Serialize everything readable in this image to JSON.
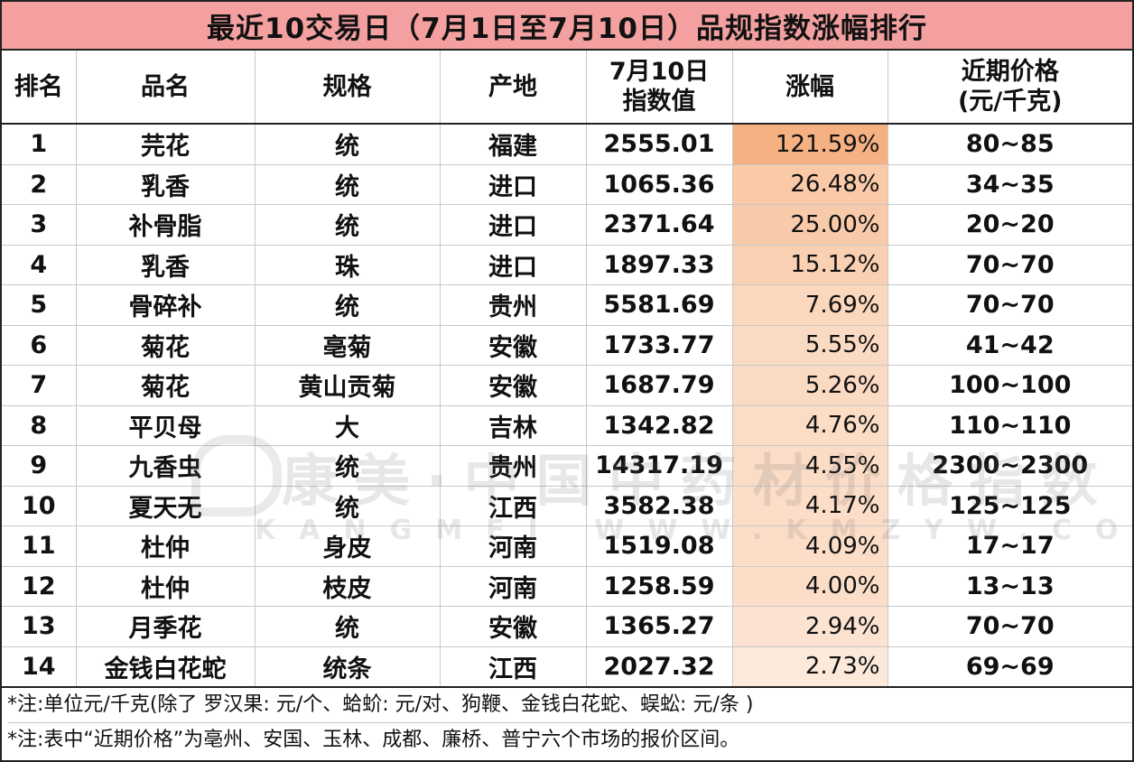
{
  "title": "最近10交易日（7月1日至7月10日）品规指数涨幅排行",
  "columns": {
    "rank": "排名",
    "name": "品名",
    "spec": "规格",
    "origin": "产地",
    "index_line1": "7月10日",
    "index_line2": "指数值",
    "change": "涨幅",
    "price_line1": "近期价格",
    "price_line2": "(元/千克)"
  },
  "rows": [
    {
      "rank": "1",
      "name": "芫花",
      "spec": "统",
      "origin": "福建",
      "index": "2555.01",
      "change": "121.59%",
      "change_value": 121.59,
      "price": "80~85"
    },
    {
      "rank": "2",
      "name": "乳香",
      "spec": "统",
      "origin": "进口",
      "index": "1065.36",
      "change": "26.48%",
      "change_value": 26.48,
      "price": "34~35"
    },
    {
      "rank": "3",
      "name": "补骨脂",
      "spec": "统",
      "origin": "进口",
      "index": "2371.64",
      "change": "25.00%",
      "change_value": 25.0,
      "price": "20~20"
    },
    {
      "rank": "4",
      "name": "乳香",
      "spec": "珠",
      "origin": "进口",
      "index": "1897.33",
      "change": "15.12%",
      "change_value": 15.12,
      "price": "70~70"
    },
    {
      "rank": "5",
      "name": "骨碎补",
      "spec": "统",
      "origin": "贵州",
      "index": "5581.69",
      "change": "7.69%",
      "change_value": 7.69,
      "price": "70~70"
    },
    {
      "rank": "6",
      "name": "菊花",
      "spec": "亳菊",
      "origin": "安徽",
      "index": "1733.77",
      "change": "5.55%",
      "change_value": 5.55,
      "price": "41~42"
    },
    {
      "rank": "7",
      "name": "菊花",
      "spec": "黄山贡菊",
      "origin": "安徽",
      "index": "1687.79",
      "change": "5.26%",
      "change_value": 5.26,
      "price": "100~100"
    },
    {
      "rank": "8",
      "name": "平贝母",
      "spec": "大",
      "origin": "吉林",
      "index": "1342.82",
      "change": "4.76%",
      "change_value": 4.76,
      "price": "110~110"
    },
    {
      "rank": "9",
      "name": "九香虫",
      "spec": "统",
      "origin": "贵州",
      "index": "14317.19",
      "change": "4.55%",
      "change_value": 4.55,
      "price": "2300~2300"
    },
    {
      "rank": "10",
      "name": "夏天无",
      "spec": "统",
      "origin": "江西",
      "index": "3582.38",
      "change": "4.17%",
      "change_value": 4.17,
      "price": "125~125"
    },
    {
      "rank": "11",
      "name": "杜仲",
      "spec": "身皮",
      "origin": "河南",
      "index": "1519.08",
      "change": "4.09%",
      "change_value": 4.09,
      "price": "17~17"
    },
    {
      "rank": "12",
      "name": "杜仲",
      "spec": "枝皮",
      "origin": "河南",
      "index": "1258.59",
      "change": "4.00%",
      "change_value": 4.0,
      "price": "13~13"
    },
    {
      "rank": "13",
      "name": "月季花",
      "spec": "统",
      "origin": "安徽",
      "index": "1365.27",
      "change": "2.94%",
      "change_value": 2.94,
      "price": "70~70"
    },
    {
      "rank": "14",
      "name": "金钱白花蛇",
      "spec": "统条",
      "origin": "江西",
      "index": "2027.32",
      "change": "2.73%",
      "change_value": 2.73,
      "price": "69~69"
    }
  ],
  "notes": [
    "*注:单位元/千克(除了 罗汉果: 元/个、蛤蚧: 元/对、狗鞭、金钱白花蛇、蜈蚣: 元/条 )",
    "*注:表中“近期价格”为亳州、安国、玉林、成都、廉桥、普宁六个市场的报价区间。"
  ],
  "watermark": {
    "main": "康美·中国中药材价格指数",
    "sub": "KANGMEI WWW.KMZYW.COM.CN KMPRICE.COM"
  },
  "colors": {
    "title_bg": "#f4a0a0",
    "heat_max": "#f6b183",
    "heat_min": "#fde9da",
    "grid": "#c8c8c8",
    "border": "#222222"
  }
}
